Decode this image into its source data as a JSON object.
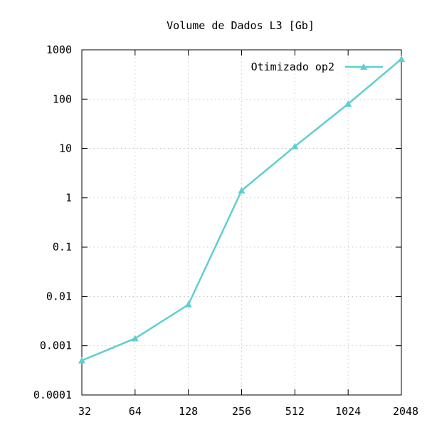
{
  "chart_data": {
    "type": "line",
    "title": "Volume de Dados L3 [Gb]",
    "xlabel": "",
    "ylabel": "",
    "x_scale": "log2",
    "y_scale": "log10",
    "x": [
      32,
      64,
      128,
      256,
      512,
      1024,
      2048
    ],
    "x_tick_labels": [
      "32",
      "64",
      "128",
      "256",
      "512",
      "1024",
      "2048"
    ],
    "y_tick_values": [
      0.0001,
      0.001,
      0.01,
      0.1,
      1,
      10,
      100,
      1000
    ],
    "y_tick_labels": [
      "0.0001",
      "0.001",
      "0.01",
      "0.1",
      "1",
      "10",
      "100",
      "1000"
    ],
    "xlim": [
      32,
      2048
    ],
    "ylim": [
      0.0001,
      1000
    ],
    "grid": true,
    "legend_position": "top-right",
    "series": [
      {
        "name": "Otimizado op2",
        "color": "#5ecfcf",
        "marker": "triangle",
        "values": [
          0.0005,
          0.0014,
          0.0068,
          1.4,
          11,
          80,
          650
        ]
      }
    ]
  }
}
